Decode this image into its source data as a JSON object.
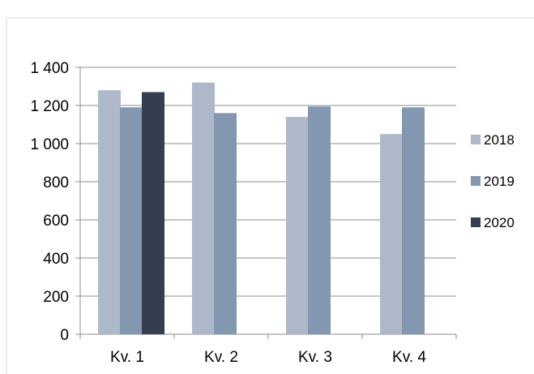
{
  "chart_data": {
    "type": "bar",
    "title": "",
    "xlabel": "",
    "ylabel": "",
    "categories": [
      "Kv. 1",
      "Kv. 2",
      "Kv. 3",
      "Kv. 4"
    ],
    "series": [
      {
        "name": "2018",
        "color": "#adb9ca",
        "values": [
          1280,
          1320,
          1140,
          1050
        ]
      },
      {
        "name": "2019",
        "color": "#8497b0",
        "values": [
          1190,
          1160,
          1195,
          1190
        ]
      },
      {
        "name": "2020",
        "color": "#333f50",
        "values": [
          1270,
          null,
          null,
          null
        ]
      }
    ],
    "ylim": [
      0,
      1400
    ],
    "yticks": [
      0,
      200,
      400,
      600,
      800,
      1000,
      1200,
      1400
    ],
    "ytick_labels": [
      "0",
      "200",
      "400",
      "600",
      "800",
      "1 000",
      "1 200",
      "1 400"
    ],
    "grid": true,
    "legend_position": "right"
  }
}
